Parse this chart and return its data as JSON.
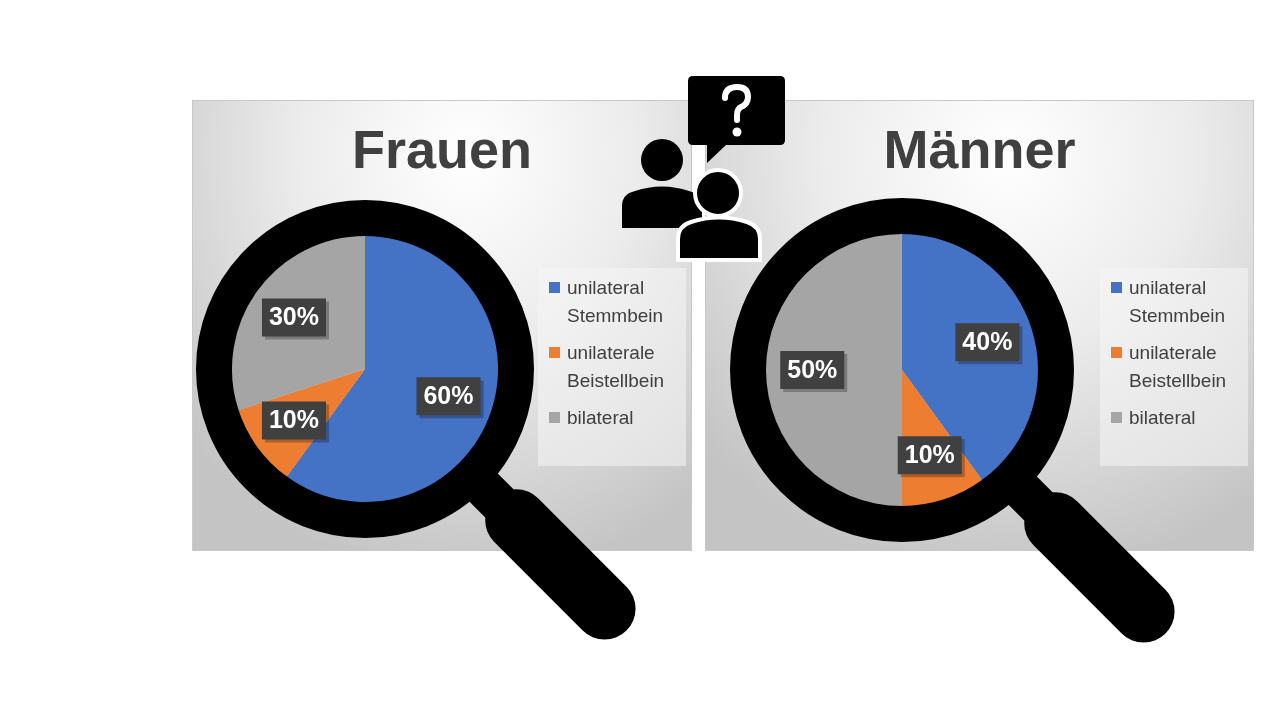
{
  "chart_data": [
    {
      "type": "pie",
      "title": "Frauen",
      "categories": [
        "unilateral Stemmbein",
        "unilaterale Beistellbein",
        "bilateral"
      ],
      "values": [
        60,
        10,
        30
      ],
      "colors": [
        "#4472c4",
        "#ed7d31",
        "#a5a5a5"
      ],
      "value_labels": [
        "60%",
        "10%",
        "30%"
      ],
      "legend": "right"
    },
    {
      "type": "pie",
      "title": "Männer",
      "categories": [
        "unilateral Stemmbein",
        "unilaterale Beistellbein",
        "bilateral"
      ],
      "values": [
        40,
        10,
        50
      ],
      "colors": [
        "#4472c4",
        "#ed7d31",
        "#a5a5a5"
      ],
      "value_labels": [
        "40%",
        "10%",
        "50%"
      ],
      "legend": "right"
    }
  ]
}
